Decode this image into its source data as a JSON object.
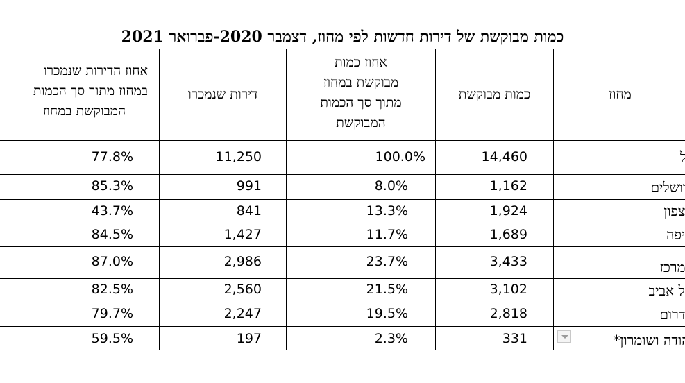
{
  "title": "כמות מבוקשת של דירות חדשות לפי מחוז, דצמבר 2020-פברואר 2021",
  "headers": {
    "district": "מחוז",
    "demanded_qty": "כמות מבוקשת",
    "pct_of_total": [
      "אחוז כמות",
      "מבוקשת במחוז",
      "מתוך סך הכמות",
      "המבוקשת"
    ],
    "sold": "דירות שנמכרו",
    "pct_sold": [
      "אחוז הדירות שנמכרו",
      "במחוז מתוך סך הכמות",
      "המבוקשת במחוז"
    ]
  },
  "rows": [
    {
      "district": "כל",
      "demanded": "14,460",
      "pct_total": "100.0%",
      "sold": "11,250",
      "pct_sold": "77.8%"
    },
    {
      "district": "ירושלים",
      "demanded": "1,162",
      "pct_total": "8.0%",
      "sold": "991",
      "pct_sold": "85.3%"
    },
    {
      "district": "הצפון",
      "demanded": "1,924",
      "pct_total": "13.3%",
      "sold": "841",
      "pct_sold": "43.7%"
    },
    {
      "district": "חיפה",
      "demanded": "1,689",
      "pct_total": "11.7%",
      "sold": "1,427",
      "pct_sold": "84.5%"
    },
    {
      "district": "המרכז",
      "demanded": "3,433",
      "pct_total": "23.7%",
      "sold": "2,986",
      "pct_sold": "87.0%"
    },
    {
      "district": "תל אביב",
      "demanded": "3,102",
      "pct_total": "21.5%",
      "sold": "2,560",
      "pct_sold": "82.5%"
    },
    {
      "district": "הדרום",
      "demanded": "2,818",
      "pct_total": "19.5%",
      "sold": "2,247",
      "pct_sold": "79.7%"
    },
    {
      "district": "יהודה ושומרון*",
      "demanded": "331",
      "pct_total": "2.3%",
      "sold": "197",
      "pct_sold": "59.5%"
    }
  ]
}
